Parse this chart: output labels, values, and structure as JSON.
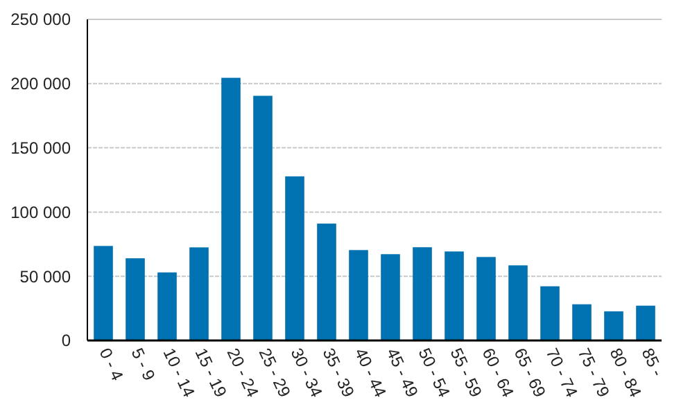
{
  "chart_data": {
    "type": "bar",
    "categories": [
      "0 - 4",
      "5 - 9",
      "10 - 14",
      "15 - 19",
      "20 - 24",
      "25 - 29",
      "30 - 34",
      "35 - 39",
      "40 - 44",
      "45 - 49",
      "50 - 54",
      "55 - 59",
      "60 - 64",
      "65 - 69",
      "70 - 74",
      "75 - 79",
      "80 - 84",
      "85 -"
    ],
    "values": [
      73600,
      64000,
      53000,
      72500,
      204500,
      190500,
      127800,
      91000,
      70400,
      67200,
      72600,
      69300,
      65000,
      58500,
      42200,
      28200,
      22700,
      27100
    ],
    "color": "#0072b2",
    "ylim": [
      0,
      250000
    ],
    "yticks": [
      {
        "value": 0,
        "label": "0"
      },
      {
        "value": 50000,
        "label": "50 000"
      },
      {
        "value": 100000,
        "label": "100 000"
      },
      {
        "value": 150000,
        "label": "150 000"
      },
      {
        "value": 200000,
        "label": "200 000"
      },
      {
        "value": 250000,
        "label": "250 000"
      }
    ],
    "grid": "y"
  }
}
